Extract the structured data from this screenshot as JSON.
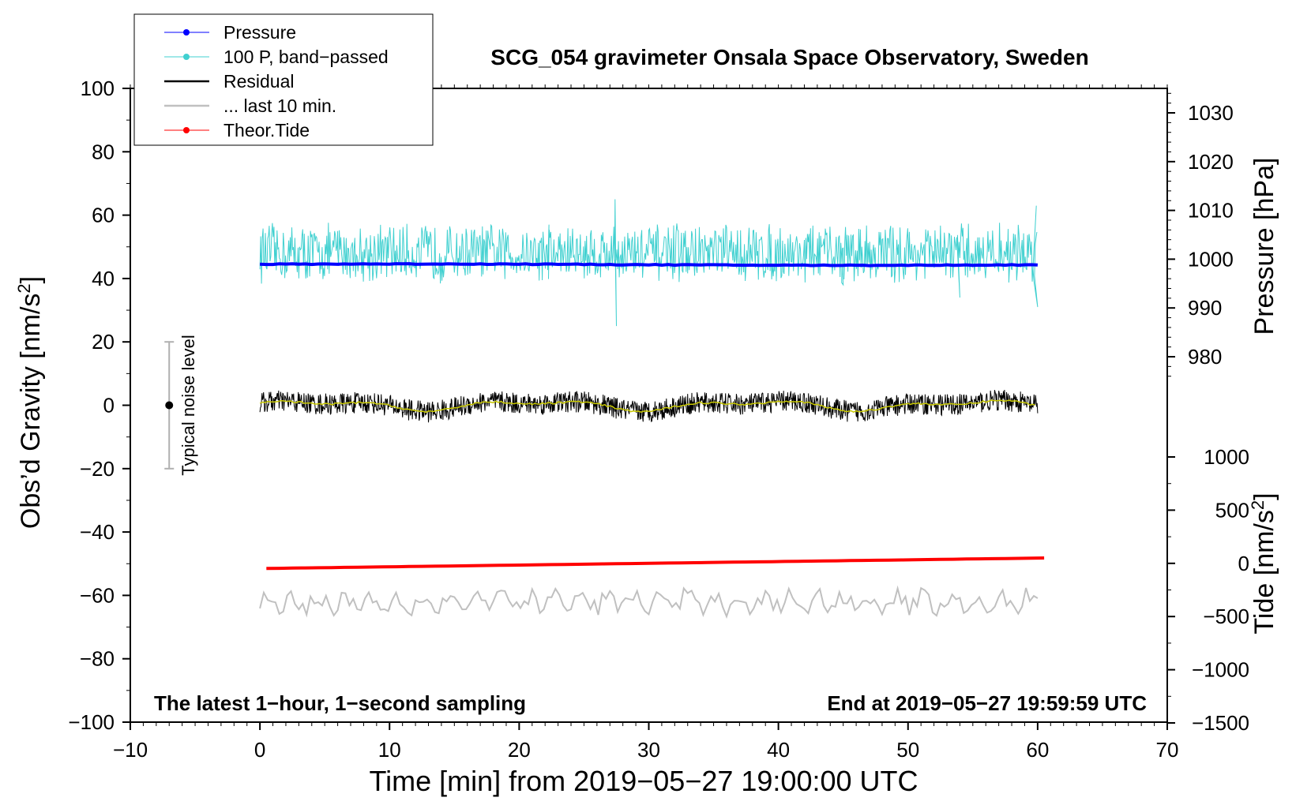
{
  "chart_data": {
    "type": "line",
    "title": "SCG_054 gravimeter Onsala Space Observatory, Sweden",
    "xlabel": "Time [min] from 2019−05−27 19:00:00 UTC",
    "ylabel_left_main": "Obs’d Gravity [nm/s",
    "ylabel_left_sup": "2",
    "ylabel_left_tail": "]",
    "ylabel_right_pressure": "Pressure [hPa]",
    "ylabel_right_tide_main": "Tide [nm/s",
    "ylabel_right_tide_sup": "2",
    "ylabel_right_tide_tail": "]",
    "xlim": [
      -10,
      70
    ],
    "ylim": [
      -100,
      100
    ],
    "pressure_axis_range": [
      980,
      1030
    ],
    "tide_axis_range": [
      -1500,
      1000
    ],
    "x_ticks": [
      -10,
      0,
      10,
      20,
      30,
      40,
      50,
      60,
      70
    ],
    "x_tick_labels": [
      "−10",
      "0",
      "10",
      "20",
      "30",
      "40",
      "50",
      "60",
      "70"
    ],
    "y_ticks": [
      -100,
      -80,
      -60,
      -40,
      -20,
      0,
      20,
      40,
      60,
      80,
      100
    ],
    "y_tick_labels": [
      "−100",
      "−80",
      "−60",
      "−40",
      "−20",
      "0",
      "20",
      "40",
      "60",
      "80",
      "100"
    ],
    "pressure_ticks": [
      980,
      990,
      1000,
      1010,
      1020,
      1030
    ],
    "pressure_tick_labels": [
      "980",
      "990",
      "1000",
      "1010",
      "1020",
      "1030"
    ],
    "tide_ticks": [
      -1500,
      -1000,
      -500,
      0,
      500,
      1000
    ],
    "tide_tick_labels": [
      "−1500",
      "−1000",
      "−500",
      "0",
      "500",
      "1000"
    ],
    "legend": {
      "position": "top-left",
      "entries": [
        {
          "label": "Pressure",
          "color": "#0000ff",
          "marker": true
        },
        {
          "label": "100 P, band−passed",
          "color": "#40d0d0",
          "marker": true
        },
        {
          "label": "Residual",
          "color": "#000000",
          "marker": false
        },
        {
          "label": "... last 10 min.",
          "color": "#c0c0c0",
          "marker": false
        },
        {
          "label": "Theor.Tide",
          "color": "#ff0000",
          "marker": true
        }
      ]
    },
    "noise_bar": {
      "label": "Typical noise level",
      "x": -7,
      "center": 0,
      "low": -20,
      "high": 20
    },
    "annotation_left": "The latest 1−hour, 1−second sampling",
    "annotation_right": "End at 2019−05−27 19:59:59 UTC",
    "series": [
      {
        "name": "Pressure",
        "color": "#0000ff",
        "x_range": [
          0,
          60
        ],
        "approx_value": 998.9,
        "shown_at_gravity_level": 44.5
      },
      {
        "name": "100 P, band−passed",
        "color": "#40d0d0",
        "x_range": [
          0,
          60
        ],
        "approx_center": 48,
        "approx_amplitude": 8,
        "extremes": [
          {
            "x": 27.5,
            "y": 65
          },
          {
            "x": 27.5,
            "y": 25
          }
        ]
      },
      {
        "name": "Residual",
        "color": "#000000",
        "x_range": [
          0,
          60
        ],
        "approx_center": 0,
        "approx_amplitude": 4
      },
      {
        "name": "Residual smoothed",
        "color": "#c8c800",
        "x_range": [
          0,
          60
        ],
        "approx_center": 0,
        "approx_amplitude": 1.5
      },
      {
        "name": "Theor.Tide",
        "color": "#ff0000",
        "x_range": [
          0.5,
          60.5
        ],
        "gravity_level": [
          -51.5,
          -48.2
        ]
      },
      {
        "name": "... last 10 min.",
        "color": "#c0c0c0",
        "x_range": [
          0,
          60
        ],
        "approx_center": -62,
        "approx_amplitude": 4
      }
    ]
  }
}
